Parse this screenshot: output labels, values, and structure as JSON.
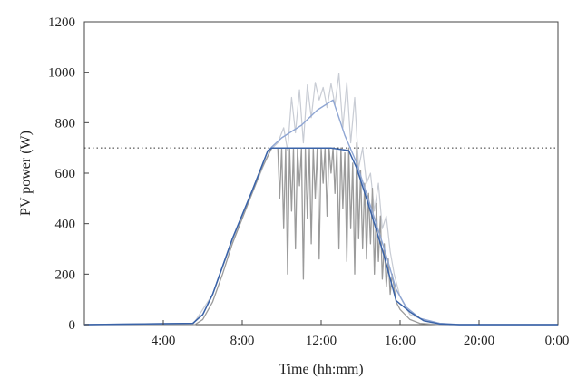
{
  "chart_data": {
    "type": "line",
    "xlabel": "Time (hh:mm)",
    "ylabel": "PV power (W)",
    "xlim": [
      0,
      24
    ],
    "ylim": [
      0,
      1200
    ],
    "x_ticks": [
      {
        "value": 4,
        "label": "4:00"
      },
      {
        "value": 8,
        "label": "8:00"
      },
      {
        "value": 12,
        "label": "12:00"
      },
      {
        "value": 16,
        "label": "16:00"
      },
      {
        "value": 20,
        "label": "20:00"
      },
      {
        "value": 24,
        "label": "0:00"
      }
    ],
    "y_ticks": [
      0,
      200,
      400,
      600,
      800,
      1000,
      1200
    ],
    "grid": false,
    "threshold_line": {
      "value": 700,
      "style": "dotted"
    },
    "series": [
      {
        "color": "#c8ccd4",
        "width": 1.2,
        "points": [
          [
            0,
            0
          ],
          [
            5.5,
            0
          ],
          [
            6.5,
            120
          ],
          [
            7.5,
            330
          ],
          [
            8.5,
            520
          ],
          [
            9.4,
            690
          ],
          [
            9.8,
            720
          ],
          [
            10.1,
            780
          ],
          [
            10.3,
            690
          ],
          [
            10.5,
            900
          ],
          [
            10.7,
            760
          ],
          [
            10.9,
            930
          ],
          [
            11.1,
            720
          ],
          [
            11.3,
            950
          ],
          [
            11.5,
            820
          ],
          [
            11.7,
            960
          ],
          [
            11.9,
            890
          ],
          [
            12.1,
            940
          ],
          [
            12.3,
            860
          ],
          [
            12.5,
            955
          ],
          [
            12.7,
            870
          ],
          [
            12.9,
            995
          ],
          [
            13.1,
            780
          ],
          [
            13.3,
            960
          ],
          [
            13.5,
            720
          ],
          [
            13.7,
            900
          ],
          [
            13.9,
            620
          ],
          [
            14.1,
            700
          ],
          [
            14.3,
            560
          ],
          [
            14.5,
            600
          ],
          [
            14.7,
            450
          ],
          [
            14.9,
            560
          ],
          [
            15.1,
            380
          ],
          [
            15.3,
            430
          ],
          [
            15.5,
            290
          ],
          [
            15.7,
            200
          ],
          [
            16.0,
            110
          ],
          [
            16.5,
            40
          ],
          [
            17.5,
            10
          ],
          [
            18.5,
            0
          ],
          [
            24,
            0
          ]
        ]
      },
      {
        "color": "#9b9b9b",
        "width": 1.3,
        "points": [
          [
            0,
            0
          ],
          [
            5.6,
            0
          ],
          [
            6.0,
            20
          ],
          [
            6.5,
            90
          ],
          [
            7.0,
            200
          ],
          [
            7.5,
            320
          ],
          [
            8.0,
            420
          ],
          [
            8.5,
            520
          ],
          [
            9.0,
            620
          ],
          [
            9.5,
            700
          ],
          [
            9.8,
            700
          ],
          [
            9.9,
            500
          ],
          [
            10.0,
            700
          ],
          [
            10.1,
            380
          ],
          [
            10.2,
            700
          ],
          [
            10.3,
            200
          ],
          [
            10.4,
            700
          ],
          [
            10.5,
            450
          ],
          [
            10.6,
            700
          ],
          [
            10.7,
            300
          ],
          [
            10.8,
            700
          ],
          [
            10.9,
            550
          ],
          [
            11.0,
            700
          ],
          [
            11.1,
            180
          ],
          [
            11.2,
            700
          ],
          [
            11.3,
            420
          ],
          [
            11.4,
            700
          ],
          [
            11.5,
            320
          ],
          [
            11.6,
            700
          ],
          [
            11.7,
            500
          ],
          [
            11.8,
            700
          ],
          [
            11.9,
            260
          ],
          [
            12.0,
            700
          ],
          [
            12.1,
            560
          ],
          [
            12.2,
            700
          ],
          [
            12.3,
            430
          ],
          [
            12.4,
            700
          ],
          [
            12.5,
            600
          ],
          [
            12.6,
            700
          ],
          [
            12.7,
            520
          ],
          [
            12.8,
            700
          ],
          [
            12.9,
            300
          ],
          [
            13.0,
            700
          ],
          [
            13.1,
            460
          ],
          [
            13.2,
            680
          ],
          [
            13.3,
            250
          ],
          [
            13.4,
            700
          ],
          [
            13.5,
            380
          ],
          [
            13.6,
            640
          ],
          [
            13.7,
            200
          ],
          [
            13.8,
            720
          ],
          [
            13.9,
            340
          ],
          [
            14.0,
            610
          ],
          [
            14.1,
            300
          ],
          [
            14.2,
            560
          ],
          [
            14.3,
            260
          ],
          [
            14.4,
            520
          ],
          [
            14.5,
            320
          ],
          [
            14.6,
            540
          ],
          [
            14.7,
            200
          ],
          [
            14.8,
            480
          ],
          [
            14.9,
            250
          ],
          [
            15.0,
            430
          ],
          [
            15.1,
            180
          ],
          [
            15.2,
            320
          ],
          [
            15.3,
            150
          ],
          [
            15.4,
            260
          ],
          [
            15.5,
            120
          ],
          [
            15.6,
            200
          ],
          [
            15.8,
            90
          ],
          [
            16.0,
            60
          ],
          [
            16.5,
            20
          ],
          [
            17.0,
            5
          ],
          [
            18.0,
            0
          ],
          [
            24,
            0
          ]
        ]
      },
      {
        "color": "#8fa6d3",
        "width": 1.4,
        "points": [
          [
            0,
            0
          ],
          [
            5.5,
            5
          ],
          [
            6.0,
            40
          ],
          [
            6.5,
            120
          ],
          [
            7.5,
            340
          ],
          [
            8.5,
            530
          ],
          [
            9.3,
            690
          ],
          [
            10.0,
            740
          ],
          [
            11.0,
            790
          ],
          [
            11.8,
            850
          ],
          [
            12.6,
            890
          ],
          [
            13.2,
            750
          ],
          [
            13.8,
            640
          ],
          [
            14.5,
            470
          ],
          [
            15.2,
            300
          ],
          [
            15.8,
            140
          ],
          [
            16.3,
            70
          ],
          [
            17.0,
            25
          ],
          [
            18.0,
            5
          ],
          [
            19.0,
            0
          ],
          [
            24,
            0
          ]
        ]
      },
      {
        "color": "#3a63a8",
        "width": 1.5,
        "points": [
          [
            0,
            0
          ],
          [
            5.5,
            5
          ],
          [
            6.0,
            40
          ],
          [
            6.5,
            120
          ],
          [
            7.5,
            340
          ],
          [
            8.5,
            530
          ],
          [
            9.3,
            690
          ],
          [
            9.5,
            700
          ],
          [
            10.5,
            700
          ],
          [
            11.5,
            700
          ],
          [
            12.5,
            700
          ],
          [
            13.4,
            690
          ],
          [
            13.8,
            620
          ],
          [
            14.5,
            450
          ],
          [
            15.2,
            270
          ],
          [
            15.8,
            95
          ],
          [
            16.5,
            50
          ],
          [
            17.2,
            15
          ],
          [
            18.0,
            3
          ],
          [
            19.0,
            0
          ],
          [
            24,
            0
          ]
        ]
      }
    ]
  }
}
